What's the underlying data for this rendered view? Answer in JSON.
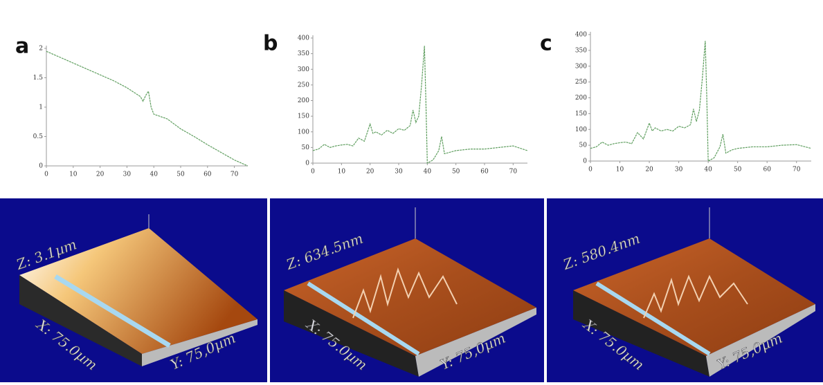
{
  "chart_data": [
    {
      "type": "line",
      "x": [
        0,
        5,
        10,
        15,
        20,
        25,
        30,
        35,
        36,
        37,
        38,
        39,
        40,
        45,
        50,
        55,
        60,
        65,
        70,
        75
      ],
      "series": [
        {
          "color": "#5f9e5f",
          "values": [
            1.95,
            1.85,
            1.75,
            1.65,
            1.55,
            1.45,
            1.33,
            1.18,
            1.1,
            1.2,
            1.27,
            1.0,
            0.88,
            0.8,
            0.63,
            0.5,
            0.36,
            0.23,
            0.1,
            0.0
          ]
        }
      ],
      "xlim": [
        0,
        75
      ],
      "ylim": [
        0,
        2
      ],
      "xticks": [
        0,
        10,
        20,
        30,
        40,
        50,
        60,
        70
      ],
      "yticks": [
        0,
        0.5,
        1,
        1.5,
        2
      ]
    },
    {
      "type": "line",
      "x": [
        0,
        2,
        4,
        6,
        8,
        10,
        12,
        14,
        16,
        18,
        20,
        21,
        22,
        24,
        26,
        28,
        30,
        32,
        34,
        35,
        36,
        37,
        38,
        39,
        39.5,
        40,
        42,
        44,
        45,
        46,
        48,
        50,
        55,
        60,
        65,
        70,
        75
      ],
      "series": [
        {
          "color": "#5f9e5f",
          "values": [
            40,
            45,
            60,
            50,
            55,
            58,
            60,
            55,
            80,
            70,
            125,
            95,
            100,
            90,
            105,
            95,
            110,
            105,
            120,
            170,
            130,
            150,
            250,
            375,
            200,
            0,
            10,
            40,
            85,
            30,
            35,
            40,
            45,
            45,
            50,
            55,
            40
          ]
        }
      ],
      "xlim": [
        0,
        75
      ],
      "ylim": [
        0,
        400
      ],
      "xticks": [
        0,
        10,
        20,
        30,
        40,
        50,
        60,
        70
      ],
      "yticks": [
        0,
        50,
        100,
        150,
        200,
        250,
        300,
        350,
        400
      ]
    },
    {
      "type": "line",
      "x": [
        0,
        2,
        4,
        6,
        8,
        10,
        12,
        14,
        16,
        18,
        20,
        21,
        22,
        24,
        26,
        28,
        30,
        32,
        34,
        35,
        36,
        37,
        38,
        39,
        39.5,
        40,
        42,
        44,
        45,
        46,
        48,
        50,
        55,
        60,
        65,
        70,
        75
      ],
      "series": [
        {
          "color": "#5f9e5f",
          "values": [
            40,
            45,
            60,
            50,
            55,
            58,
            60,
            55,
            90,
            70,
            120,
            95,
            105,
            95,
            100,
            95,
            110,
            105,
            115,
            165,
            125,
            160,
            260,
            380,
            210,
            0,
            10,
            45,
            85,
            25,
            35,
            40,
            45,
            45,
            50,
            52,
            40
          ]
        }
      ],
      "xlim": [
        0,
        75
      ],
      "ylim": [
        0,
        400
      ],
      "xticks": [
        0,
        10,
        20,
        30,
        40,
        50,
        60,
        70
      ],
      "yticks": [
        0,
        50,
        100,
        150,
        200,
        250,
        300,
        350,
        400
      ]
    }
  ],
  "panels": [
    {
      "letter": "a",
      "z_label": "Z: 3.1µm",
      "x_label": "X: 75.0µm",
      "y_label": "Y: 75,0µm"
    },
    {
      "letter": "b",
      "z_label": "Z: 634.5nm",
      "x_label": "X: 75.0µm",
      "y_label": "Y: 75,0µm"
    },
    {
      "letter": "c",
      "z_label": "Z: 580.4nm",
      "x_label": "X: 75.0µm",
      "y_label": "Y: 75,0µm"
    }
  ]
}
